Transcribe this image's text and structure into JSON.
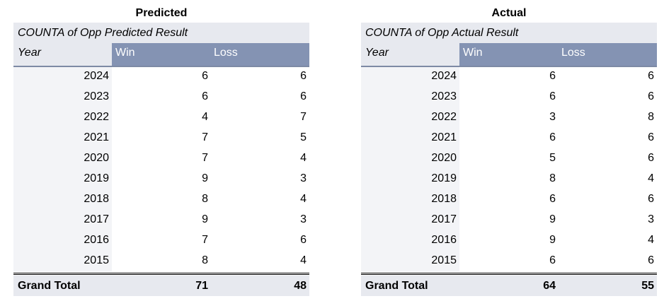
{
  "predicted": {
    "title": "Predicted",
    "header": "COUNTA of Opp Predicted Result",
    "row_label": "Year",
    "col_win": "Win",
    "col_loss": "Loss",
    "rows": [
      {
        "year": "2024",
        "win": "6",
        "loss": "6"
      },
      {
        "year": "2023",
        "win": "6",
        "loss": "6"
      },
      {
        "year": "2022",
        "win": "4",
        "loss": "7"
      },
      {
        "year": "2021",
        "win": "7",
        "loss": "5"
      },
      {
        "year": "2020",
        "win": "7",
        "loss": "4"
      },
      {
        "year": "2019",
        "win": "9",
        "loss": "3"
      },
      {
        "year": "2018",
        "win": "8",
        "loss": "4"
      },
      {
        "year": "2017",
        "win": "9",
        "loss": "3"
      },
      {
        "year": "2016",
        "win": "7",
        "loss": "6"
      },
      {
        "year": "2015",
        "win": "8",
        "loss": "4"
      }
    ],
    "total_label": "Grand Total",
    "total_win": "71",
    "total_loss": "48"
  },
  "actual": {
    "title": "Actual",
    "header": "COUNTA of Opp Actual Result",
    "row_label": "Year",
    "col_win": "Win",
    "col_loss": "Loss",
    "rows": [
      {
        "year": "2024",
        "win": "6",
        "loss": "6"
      },
      {
        "year": "2023",
        "win": "6",
        "loss": "6"
      },
      {
        "year": "2022",
        "win": "3",
        "loss": "8"
      },
      {
        "year": "2021",
        "win": "6",
        "loss": "6"
      },
      {
        "year": "2020",
        "win": "5",
        "loss": "6"
      },
      {
        "year": "2019",
        "win": "8",
        "loss": "4"
      },
      {
        "year": "2018",
        "win": "6",
        "loss": "6"
      },
      {
        "year": "2017",
        "win": "9",
        "loss": "3"
      },
      {
        "year": "2016",
        "win": "9",
        "loss": "4"
      },
      {
        "year": "2015",
        "win": "6",
        "loss": "6"
      }
    ],
    "total_label": "Grand Total",
    "total_win": "64",
    "total_loss": "55"
  },
  "colors": {
    "header_fill": "#e7e9ef",
    "column_header_fill": "#8493b3",
    "row_label_fill": "#f3f4f7"
  }
}
